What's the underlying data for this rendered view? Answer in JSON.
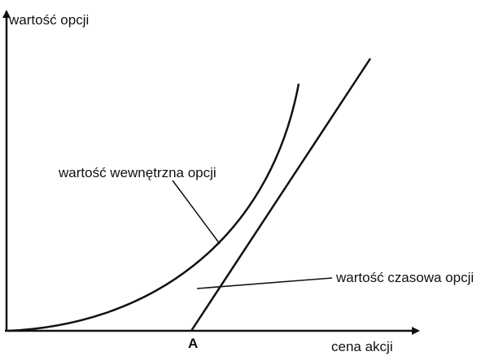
{
  "y_axis_label": "wartość opcji",
  "x_axis_label": "cena akcji",
  "point_label": "A",
  "annotations": [
    "wartość wewnętrzna opcji",
    "wartość czasowa opcji"
  ]
}
